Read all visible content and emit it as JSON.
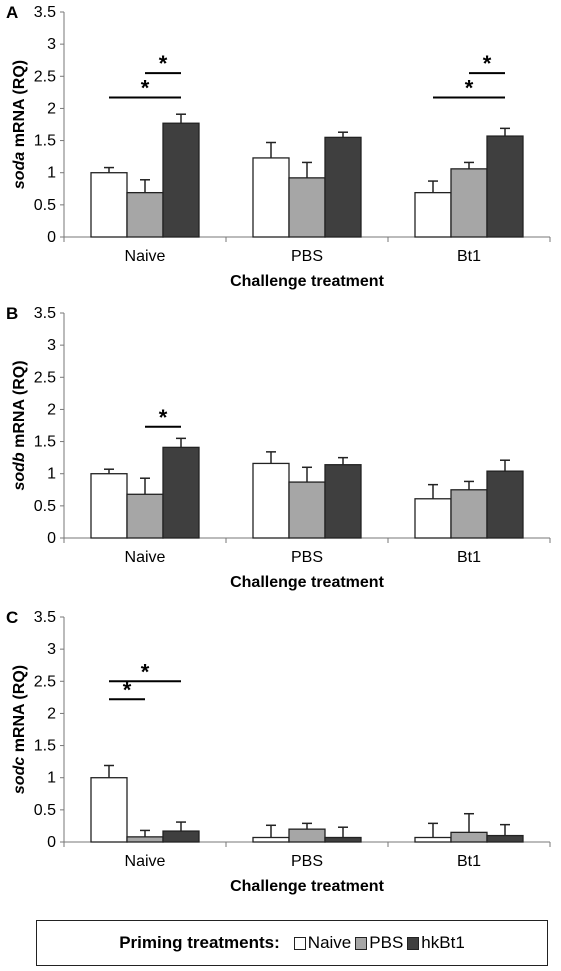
{
  "legend": {
    "title": "Priming treatments:",
    "items": [
      {
        "label": "Naive",
        "color": "#ffffff"
      },
      {
        "label": "PBS",
        "color": "#a6a6a6"
      },
      {
        "label": "hkBt1",
        "color": "#3f3f3f"
      }
    ]
  },
  "chart_data": [
    {
      "type": "bar",
      "panel": "A",
      "ylabel_italic": "soda",
      "ylabel_rest": " mRNA (RQ)",
      "xlabel": "Challenge treatment",
      "categories": [
        "Naive",
        "PBS",
        "Bt1"
      ],
      "ylim": [
        0,
        3.5
      ],
      "yticks": [
        "0",
        "0.5",
        "1",
        "1.5",
        "2",
        "2.5",
        "3",
        "3.5"
      ],
      "series": [
        {
          "values": [
            1.0,
            1.23,
            0.69
          ],
          "errors": [
            0.08,
            0.24,
            0.18
          ]
        },
        {
          "values": [
            0.69,
            0.92,
            1.06
          ],
          "errors": [
            0.2,
            0.24,
            0.1
          ]
        },
        {
          "values": [
            1.77,
            1.55,
            1.57
          ],
          "errors": [
            0.14,
            0.08,
            0.12
          ]
        }
      ],
      "significance": [
        {
          "category": 0,
          "from": 1,
          "to": 2,
          "y": 2.55,
          "label": "*"
        },
        {
          "category": 0,
          "from": 0,
          "to": 2,
          "y": 2.17,
          "label": "*"
        },
        {
          "category": 2,
          "from": 1,
          "to": 2,
          "y": 2.55,
          "label": "*"
        },
        {
          "category": 2,
          "from": 0,
          "to": 2,
          "y": 2.17,
          "label": "*"
        }
      ]
    },
    {
      "type": "bar",
      "panel": "B",
      "ylabel_italic": "sodb",
      "ylabel_rest": " mRNA (RQ)",
      "xlabel": "Challenge treatment",
      "categories": [
        "Naive",
        "PBS",
        "Bt1"
      ],
      "ylim": [
        0,
        3.5
      ],
      "yticks": [
        "0",
        "0.5",
        "1",
        "1.5",
        "2",
        "2.5",
        "3",
        "3.5"
      ],
      "series": [
        {
          "values": [
            1.0,
            1.16,
            0.61
          ],
          "errors": [
            0.07,
            0.18,
            0.22
          ]
        },
        {
          "values": [
            0.68,
            0.87,
            0.75
          ],
          "errors": [
            0.25,
            0.23,
            0.13
          ]
        },
        {
          "values": [
            1.41,
            1.14,
            1.04
          ],
          "errors": [
            0.14,
            0.11,
            0.17
          ]
        }
      ],
      "significance": [
        {
          "category": 0,
          "from": 1,
          "to": 2,
          "y": 1.73,
          "label": "*"
        }
      ]
    },
    {
      "type": "bar",
      "panel": "C",
      "ylabel_italic": "sodc",
      "ylabel_rest": " mRNA (RQ)",
      "xlabel": "Challenge treatment",
      "categories": [
        "Naive",
        "PBS",
        "Bt1"
      ],
      "ylim": [
        0,
        3.5
      ],
      "yticks": [
        "0",
        "0.5",
        "1",
        "1.5",
        "2",
        "2.5",
        "3",
        "3.5"
      ],
      "series": [
        {
          "values": [
            1.0,
            0.07,
            0.07
          ],
          "errors": [
            0.19,
            0.19,
            0.22
          ]
        },
        {
          "values": [
            0.08,
            0.2,
            0.15
          ],
          "errors": [
            0.1,
            0.09,
            0.29
          ]
        },
        {
          "values": [
            0.17,
            0.07,
            0.1
          ],
          "errors": [
            0.14,
            0.16,
            0.17
          ]
        }
      ],
      "significance": [
        {
          "category": 0,
          "from": 0,
          "to": 1,
          "y": 2.22,
          "label": "*"
        },
        {
          "category": 0,
          "from": 0,
          "to": 2,
          "y": 2.5,
          "label": "*"
        }
      ]
    }
  ]
}
